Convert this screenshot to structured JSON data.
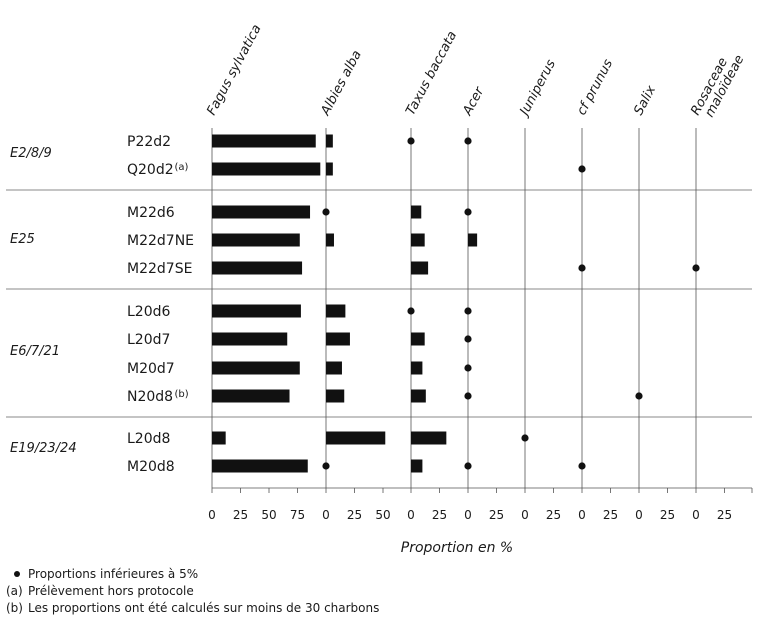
{
  "chart_data": {
    "type": "bar",
    "orientation": "horizontal",
    "xlabel": "Proportion en %",
    "taxa": [
      {
        "name": "Fagus sylvatica",
        "ticks": [
          "0",
          "25",
          "50",
          "75"
        ],
        "max": 100
      },
      {
        "name": "Albies alba",
        "ticks": [
          "0",
          "25",
          "50"
        ],
        "max": 75
      },
      {
        "name": "Taxus baccata",
        "ticks": [
          "0",
          "25"
        ],
        "max": 50
      },
      {
        "name": "Acer",
        "ticks": [
          "0",
          "25"
        ],
        "max": 50
      },
      {
        "name": "Juniperus",
        "ticks": [
          "0",
          "25"
        ],
        "max": 50
      },
      {
        "name": "cf prunus",
        "ticks": [
          "0",
          "25"
        ],
        "max": 50
      },
      {
        "name": "Salix",
        "ticks": [
          "0",
          "25"
        ],
        "max": 50
      },
      {
        "name": "Rosaceae\nmaloïdeae",
        "ticks": [
          "0",
          "25"
        ],
        "max": 50
      }
    ],
    "groups": [
      {
        "name": "E2/8/9",
        "samples": [
          {
            "label": "P22d2",
            "note": "",
            "values": [
              91,
              6,
              "dot",
              "dot",
              null,
              null,
              null,
              null
            ]
          },
          {
            "label": "Q20d2",
            "note": "(a)",
            "values": [
              95,
              6,
              null,
              null,
              null,
              "dot",
              null,
              null
            ]
          }
        ]
      },
      {
        "name": "E25",
        "samples": [
          {
            "label": "M22d6",
            "note": "",
            "values": [
              86,
              "dot",
              9,
              "dot",
              null,
              null,
              null,
              null
            ]
          },
          {
            "label": "M22d7NE",
            "note": "",
            "values": [
              77,
              7,
              12,
              8,
              null,
              null,
              null,
              null
            ]
          },
          {
            "label": "M22d7SE",
            "note": "",
            "values": [
              79,
              null,
              15,
              null,
              null,
              "dot",
              null,
              "dot"
            ]
          }
        ]
      },
      {
        "name": "E6/7/21",
        "samples": [
          {
            "label": "L20d6",
            "note": "",
            "values": [
              78,
              17,
              "dot",
              "dot",
              null,
              null,
              null,
              null
            ]
          },
          {
            "label": "L20d7",
            "note": "",
            "values": [
              66,
              21,
              12,
              "dot",
              null,
              null,
              null,
              null
            ]
          },
          {
            "label": "M20d7",
            "note": "",
            "values": [
              77,
              14,
              10,
              "dot",
              null,
              null,
              null,
              null
            ]
          },
          {
            "label": "N20d8",
            "note": "(b)",
            "values": [
              68,
              16,
              13,
              "dot",
              null,
              null,
              "dot",
              null
            ]
          }
        ]
      },
      {
        "name": "E19/23/24",
        "samples": [
          {
            "label": "L20d8",
            "note": "",
            "values": [
              12,
              52,
              31,
              null,
              "dot",
              null,
              null,
              null
            ]
          },
          {
            "label": "M20d8",
            "note": "",
            "values": [
              84,
              "dot",
              10,
              "dot",
              null,
              "dot",
              null,
              null
            ]
          }
        ]
      }
    ],
    "legend": [
      {
        "symbol": "dot",
        "text": "Proportions inférieures à 5%"
      },
      {
        "symbol": "(a)",
        "text": "Prélèvement hors protocole"
      },
      {
        "symbol": "(b)",
        "text": "Les proportions ont été calculés sur moins de 30 charbons"
      }
    ]
  }
}
